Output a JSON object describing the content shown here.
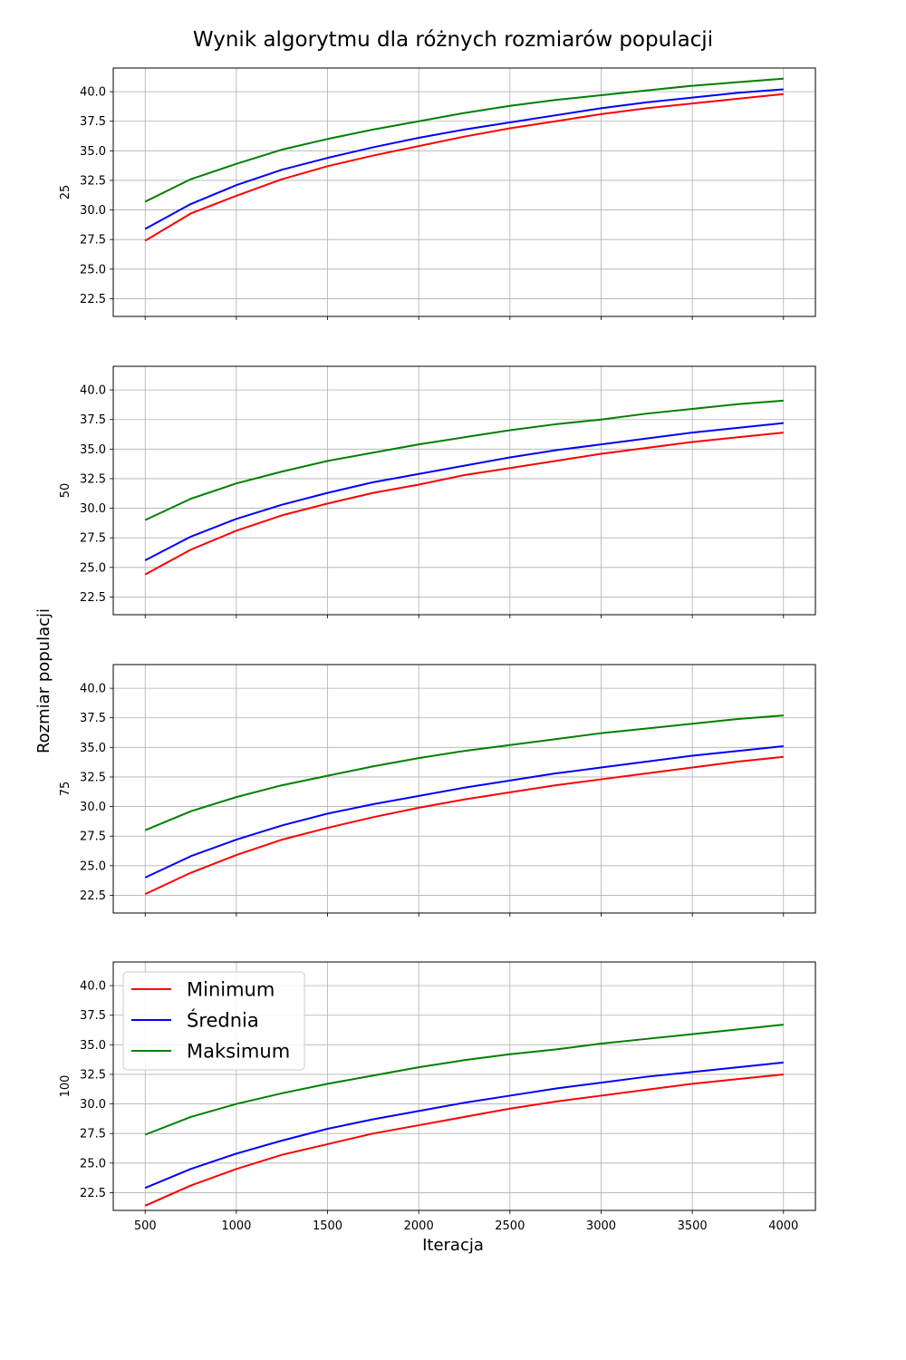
{
  "figure": {
    "title": "Wynik algorytmu dla różnych rozmiarów populacji",
    "xlabel": "Iteracja",
    "ylabel": "Rozmiar populacji"
  },
  "chart_data": {
    "type": "line",
    "x": [
      500,
      750,
      1000,
      1250,
      1500,
      1750,
      2000,
      2250,
      2500,
      2750,
      3000,
      3250,
      3500,
      3750,
      4000
    ],
    "xlim": [
      325,
      4175
    ],
    "ylim": [
      21.0,
      42.0
    ],
    "x_ticks": [
      500,
      1000,
      1500,
      2000,
      2500,
      3000,
      3500,
      4000
    ],
    "y_ticks": [
      22.5,
      25.0,
      27.5,
      30.0,
      32.5,
      35.0,
      37.5,
      40.0
    ],
    "y_tick_labels": [
      "22.5",
      "25.0",
      "27.5",
      "30.0",
      "32.5",
      "35.0",
      "37.5",
      "40.0"
    ],
    "grid": true,
    "sharex": true,
    "legend": {
      "location": "upper-left",
      "panel": 3
    },
    "colors": {
      "Minimum": "#ff0000",
      "Średnia": "#0000ff",
      "Maksimum": "#008000"
    },
    "panels": [
      {
        "label": "25",
        "series": [
          {
            "name": "Minimum",
            "values": [
              27.4,
              29.7,
              31.2,
              32.6,
              33.7,
              34.6,
              35.4,
              36.2,
              36.9,
              37.5,
              38.1,
              38.6,
              39.0,
              39.4,
              39.8
            ]
          },
          {
            "name": "Średnia",
            "values": [
              28.4,
              30.5,
              32.1,
              33.4,
              34.4,
              35.3,
              36.1,
              36.8,
              37.4,
              38.0,
              38.6,
              39.1,
              39.5,
              39.9,
              40.2
            ]
          },
          {
            "name": "Maksimum",
            "values": [
              30.7,
              32.6,
              33.9,
              35.1,
              36.0,
              36.8,
              37.5,
              38.2,
              38.8,
              39.3,
              39.7,
              40.1,
              40.5,
              40.8,
              41.1
            ]
          }
        ]
      },
      {
        "label": "50",
        "series": [
          {
            "name": "Minimum",
            "values": [
              24.4,
              26.5,
              28.1,
              29.4,
              30.4,
              31.3,
              32.0,
              32.8,
              33.4,
              34.0,
              34.6,
              35.1,
              35.6,
              36.0,
              36.4
            ]
          },
          {
            "name": "Średnia",
            "values": [
              25.6,
              27.6,
              29.1,
              30.3,
              31.3,
              32.2,
              32.9,
              33.6,
              34.3,
              34.9,
              35.4,
              35.9,
              36.4,
              36.8,
              37.2
            ]
          },
          {
            "name": "Maksimum",
            "values": [
              29.0,
              30.8,
              32.1,
              33.1,
              34.0,
              34.7,
              35.4,
              36.0,
              36.6,
              37.1,
              37.5,
              38.0,
              38.4,
              38.8,
              39.1
            ]
          }
        ]
      },
      {
        "label": "75",
        "series": [
          {
            "name": "Minimum",
            "values": [
              22.6,
              24.4,
              25.9,
              27.2,
              28.2,
              29.1,
              29.9,
              30.6,
              31.2,
              31.8,
              32.3,
              32.8,
              33.3,
              33.8,
              34.2
            ]
          },
          {
            "name": "Średnia",
            "values": [
              24.0,
              25.8,
              27.2,
              28.4,
              29.4,
              30.2,
              30.9,
              31.6,
              32.2,
              32.8,
              33.3,
              33.8,
              34.3,
              34.7,
              35.1
            ]
          },
          {
            "name": "Maksimum",
            "values": [
              28.0,
              29.6,
              30.8,
              31.8,
              32.6,
              33.4,
              34.1,
              34.7,
              35.2,
              35.7,
              36.2,
              36.6,
              37.0,
              37.4,
              37.7
            ]
          }
        ]
      },
      {
        "label": "100",
        "series": [
          {
            "name": "Minimum",
            "values": [
              21.4,
              23.1,
              24.5,
              25.7,
              26.6,
              27.5,
              28.2,
              28.9,
              29.6,
              30.2,
              30.7,
              31.2,
              31.7,
              32.1,
              32.5
            ]
          },
          {
            "name": "Średnia",
            "values": [
              22.9,
              24.5,
              25.8,
              26.9,
              27.9,
              28.7,
              29.4,
              30.1,
              30.7,
              31.3,
              31.8,
              32.3,
              32.7,
              33.1,
              33.5
            ]
          },
          {
            "name": "Maksimum",
            "values": [
              27.4,
              28.9,
              30.0,
              30.9,
              31.7,
              32.4,
              33.1,
              33.7,
              34.2,
              34.6,
              35.1,
              35.5,
              35.9,
              36.3,
              36.7
            ]
          }
        ]
      }
    ]
  }
}
